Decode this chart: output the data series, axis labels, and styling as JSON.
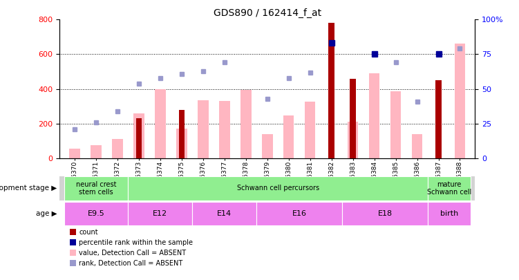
{
  "title": "GDS890 / 162414_f_at",
  "samples": [
    "GSM15370",
    "GSM15371",
    "GSM15372",
    "GSM15373",
    "GSM15374",
    "GSM15375",
    "GSM15376",
    "GSM15377",
    "GSM15378",
    "GSM15379",
    "GSM15380",
    "GSM15381",
    "GSM15382",
    "GSM15383",
    "GSM15384",
    "GSM15385",
    "GSM15386",
    "GSM15387",
    "GSM15388"
  ],
  "count_values": [
    null,
    null,
    null,
    230,
    null,
    280,
    null,
    null,
    null,
    null,
    null,
    null,
    780,
    460,
    null,
    null,
    null,
    450,
    null
  ],
  "rank_values": [
    null,
    null,
    null,
    null,
    null,
    null,
    null,
    null,
    null,
    null,
    null,
    null,
    83,
    null,
    75,
    null,
    null,
    75,
    null
  ],
  "pink_bar_values": [
    55,
    75,
    110,
    260,
    400,
    170,
    335,
    330,
    395,
    140,
    245,
    325,
    null,
    210,
    490,
    385,
    140,
    null,
    660
  ],
  "light_blue_values": [
    21,
    26,
    34,
    54,
    58,
    61,
    63,
    69,
    null,
    43,
    58,
    62,
    null,
    null,
    75,
    69,
    41,
    null,
    79
  ],
  "ylim_left": [
    0,
    800
  ],
  "ylim_right": [
    0,
    100
  ],
  "yticks_left": [
    0,
    200,
    400,
    600,
    800
  ],
  "yticks_right": [
    0,
    25,
    50,
    75,
    100
  ],
  "dev_groups": [
    {
      "label": "neural crest\nstem cells",
      "start": 0,
      "end": 2,
      "color": "#90EE90"
    },
    {
      "label": "Schwann cell percursors",
      "start": 3,
      "end": 16,
      "color": "#90EE90"
    },
    {
      "label": "mature\nSchwann cell",
      "start": 17,
      "end": 18,
      "color": "#90EE90"
    }
  ],
  "age_groups": [
    {
      "label": "E9.5",
      "start": 0,
      "end": 2
    },
    {
      "label": "E12",
      "start": 3,
      "end": 5
    },
    {
      "label": "E14",
      "start": 6,
      "end": 8
    },
    {
      "label": "E16",
      "start": 9,
      "end": 12
    },
    {
      "label": "E18",
      "start": 13,
      "end": 16
    },
    {
      "label": "birth",
      "start": 17,
      "end": 18
    }
  ],
  "bar_color_dark_red": "#AA0000",
  "bar_color_pink": "#FFB6C1",
  "dot_color_dark_blue": "#000099",
  "dot_color_light_blue": "#9999CC",
  "background_color": "#FFFFFF"
}
